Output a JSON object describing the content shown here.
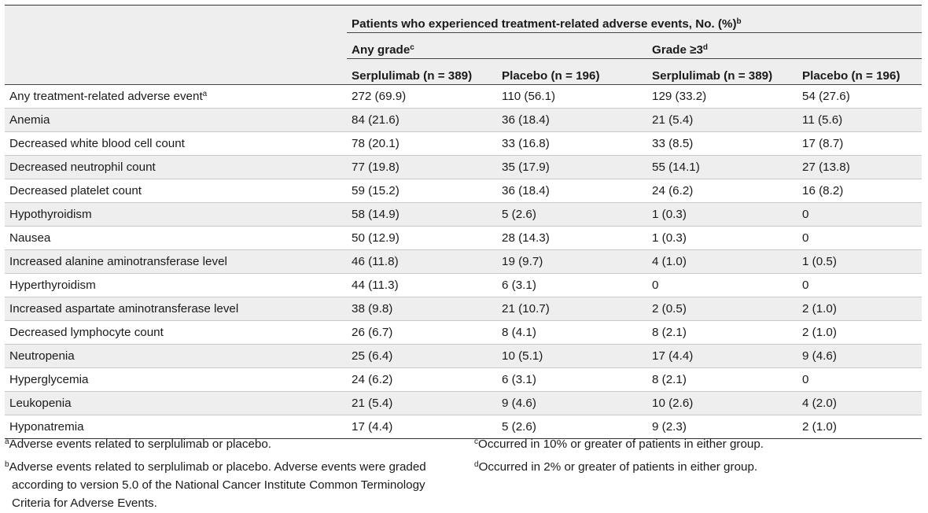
{
  "table": {
    "header": {
      "title": "Patients who experienced treatment-related adverse events, No. (%)",
      "title_note": "b",
      "any_grade": "Any grade",
      "any_grade_note": "c",
      "grade3": "Grade ≥3",
      "grade3_note": "d",
      "columns": [
        "Serplulimab (n = 389)",
        "Placebo (n = 196)",
        "Serplulimab (n = 389)",
        "Placebo (n = 196)"
      ]
    },
    "rows": [
      {
        "event": "Any treatment-related adverse event",
        "note": "a",
        "values": [
          "272 (69.9)",
          "110 (56.1)",
          "129 (33.2)",
          "54 (27.6)"
        ]
      },
      {
        "event": "Anemia",
        "note": "",
        "values": [
          "84 (21.6)",
          "36 (18.4)",
          "21 (5.4)",
          "11 (5.6)"
        ]
      },
      {
        "event": "Decreased white blood cell count",
        "note": "",
        "values": [
          "78 (20.1)",
          "33 (16.8)",
          "33 (8.5)",
          "17 (8.7)"
        ]
      },
      {
        "event": "Decreased neutrophil count",
        "note": "",
        "values": [
          "77 (19.8)",
          "35 (17.9)",
          "55 (14.1)",
          "27 (13.8)"
        ]
      },
      {
        "event": "Decreased platelet count",
        "note": "",
        "values": [
          "59 (15.2)",
          "36 (18.4)",
          "24 (6.2)",
          "16 (8.2)"
        ]
      },
      {
        "event": "Hypothyroidism",
        "note": "",
        "values": [
          "58 (14.9)",
          "5 (2.6)",
          "1 (0.3)",
          "0"
        ]
      },
      {
        "event": "Nausea",
        "note": "",
        "values": [
          "50 (12.9)",
          "28 (14.3)",
          "1 (0.3)",
          "0"
        ]
      },
      {
        "event": "Increased alanine aminotransferase level",
        "note": "",
        "values": [
          "46 (11.8)",
          "19 (9.7)",
          "4 (1.0)",
          "1 (0.5)"
        ]
      },
      {
        "event": "Hyperthyroidism",
        "note": "",
        "values": [
          "44 (11.3)",
          "6 (3.1)",
          "0",
          "0"
        ]
      },
      {
        "event": "Increased aspartate aminotransferase level",
        "note": "",
        "values": [
          "38 (9.8)",
          "21 (10.7)",
          "2 (0.5)",
          "2 (1.0)"
        ]
      },
      {
        "event": "Decreased lymphocyte count",
        "note": "",
        "values": [
          "26 (6.7)",
          "8 (4.1)",
          "8 (2.1)",
          "2 (1.0)"
        ]
      },
      {
        "event": "Neutropenia",
        "note": "",
        "values": [
          "25 (6.4)",
          "10 (5.1)",
          "17 (4.4)",
          "9 (4.6)"
        ]
      },
      {
        "event": "Hyperglycemia",
        "note": "",
        "values": [
          "24 (6.2)",
          "6 (3.1)",
          "8 (2.1)",
          "0"
        ]
      },
      {
        "event": "Leukopenia",
        "note": "",
        "values": [
          "21 (5.4)",
          "9 (4.6)",
          "10 (2.6)",
          "4 (2.0)"
        ]
      },
      {
        "event": "Hyponatremia",
        "note": "",
        "values": [
          "17 (4.4)",
          "5 (2.6)",
          "9 (2.3)",
          "2 (1.0)"
        ]
      }
    ]
  },
  "footnotes": {
    "a": {
      "mark": "a",
      "text": "Adverse events related to serplulimab or placebo."
    },
    "b": {
      "mark": "b",
      "text": "Adverse events related to serplulimab or placebo. Adverse events were graded according to version 5.0 of the National Cancer Institute Common Terminology Criteria for Adverse Events."
    },
    "c": {
      "mark": "c",
      "text": "Occurred in 10% or greater of patients in either group."
    },
    "d": {
      "mark": "d",
      "text": "Occurred in 2% or greater of patients in either group."
    }
  }
}
